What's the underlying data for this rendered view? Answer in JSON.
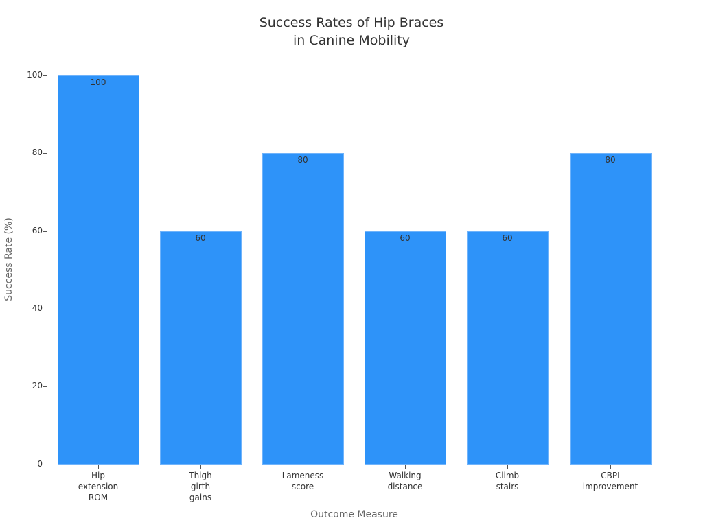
{
  "chart_data": {
    "type": "bar",
    "title": "Success Rates of Hip Braces\nin Canine Mobility",
    "title_lines": [
      "Success Rates of Hip Braces",
      "in Canine Mobility"
    ],
    "xlabel": "Outcome Measure",
    "ylabel": "Success Rate (%)",
    "categories": [
      "Hip extension ROM",
      "Thigh girth gains",
      "Lameness score",
      "Walking distance",
      "Climb stairs",
      "CBPI improvement"
    ],
    "category_labels": [
      "Hip\nextension\nROM",
      "Thigh\ngirth\ngains",
      "Lameness\nscore",
      "Walking\ndistance",
      "Climb\nstairs",
      "CBPI\nimprovement"
    ],
    "values": [
      100,
      60,
      80,
      60,
      60,
      80
    ],
    "value_labels": [
      "100",
      "60",
      "80",
      "60",
      "60",
      "80"
    ],
    "ylim": [
      0,
      105
    ],
    "yticks": [
      0,
      20,
      40,
      60,
      80,
      100
    ],
    "ytick_labels": [
      "0",
      "20",
      "40",
      "60",
      "80",
      "100"
    ],
    "grid": false,
    "legend": null,
    "colors": {
      "bar": "#2e93f9",
      "axis": "#cccccc",
      "text": "#333333",
      "axis_title": "#666666"
    }
  }
}
